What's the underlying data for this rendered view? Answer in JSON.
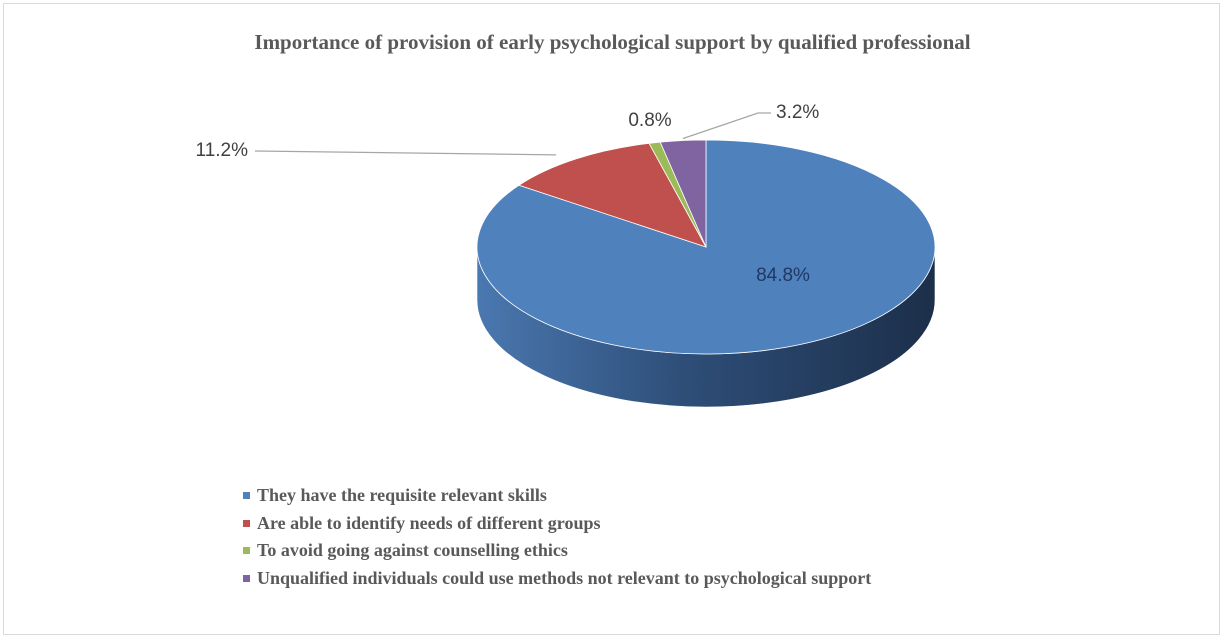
{
  "chart_data": {
    "type": "pie",
    "title": "Importance of provision of early psychological support by qualified professional",
    "slices": [
      {
        "label": "They have the requisite relevant skills",
        "value": 84.8,
        "display": "84.8%",
        "color": "#4f81bd"
      },
      {
        "label": "Are able to identify needs of different groups",
        "value": 11.2,
        "display": "11.2%",
        "color": "#c0504d"
      },
      {
        "label": "To avoid going against counselling ethics",
        "value": 0.8,
        "display": "0.8%",
        "color": "#9bbb59"
      },
      {
        "label": "Unqualified individuals could use methods not relevant to psychological support",
        "value": 3.2,
        "display": "3.2%",
        "color": "#8064a2"
      }
    ],
    "legend_position": "bottom-left",
    "style": "3d-pie"
  }
}
